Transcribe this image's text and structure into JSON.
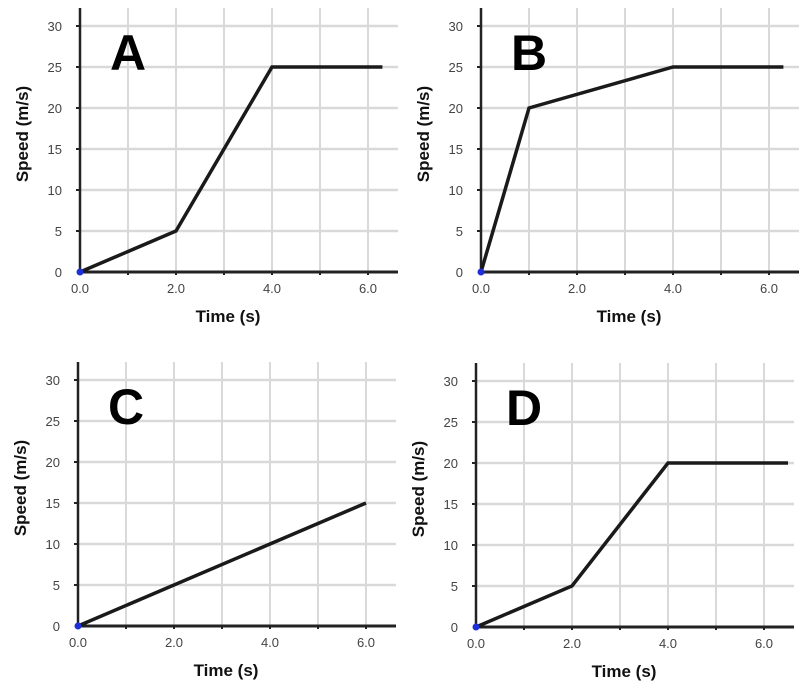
{
  "figure": {
    "description": "Four speed vs time graphs labeled A, B, C, D",
    "colors": {
      "line": "#1a1a1a",
      "grid": "#d9d9d9",
      "axis": "#222222",
      "origin_marker": "#1f2fd6",
      "tick_text": "#444444"
    }
  },
  "panels": [
    {
      "letter": "A",
      "xlabel": "Time (s)",
      "ylabel": "Speed (m/s)",
      "xticks": [
        "0.0",
        "2.0",
        "4.0",
        "6.0"
      ],
      "yticks": [
        "0",
        "5",
        "10",
        "15",
        "20",
        "25",
        "30"
      ]
    },
    {
      "letter": "B",
      "xlabel": "Time (s)",
      "ylabel": "Speed (m/s)",
      "xticks": [
        "0.0",
        "2.0",
        "4.0",
        "6.0"
      ],
      "yticks": [
        "0",
        "5",
        "10",
        "15",
        "20",
        "25",
        "30"
      ]
    },
    {
      "letter": "C",
      "xlabel": "Time (s)",
      "ylabel": "Speed (m/s)",
      "xticks": [
        "0.0",
        "2.0",
        "4.0",
        "6.0"
      ],
      "yticks": [
        "0",
        "5",
        "10",
        "15",
        "20",
        "25",
        "30"
      ]
    },
    {
      "letter": "D",
      "xlabel": "Time (s)",
      "ylabel": "Speed (m/s)",
      "xticks": [
        "0.0",
        "2.0",
        "4.0",
        "6.0"
      ],
      "yticks": [
        "0",
        "5",
        "10",
        "15",
        "20",
        "25",
        "30"
      ]
    }
  ],
  "chart_data": [
    {
      "type": "line",
      "title": "A",
      "xlabel": "Time (s)",
      "ylabel": "Speed (m/s)",
      "xlim": [
        0,
        6.6
      ],
      "ylim": [
        0,
        31
      ],
      "grid": true,
      "xticks": [
        0,
        2,
        4,
        6
      ],
      "yticks": [
        0,
        5,
        10,
        15,
        20,
        25,
        30
      ],
      "x": [
        0,
        2,
        4,
        6.3
      ],
      "y": [
        0,
        5,
        25,
        25
      ]
    },
    {
      "type": "line",
      "title": "B",
      "xlabel": "Time (s)",
      "ylabel": "Speed (m/s)",
      "xlim": [
        0,
        6.6
      ],
      "ylim": [
        0,
        31
      ],
      "grid": true,
      "xticks": [
        0,
        2,
        4,
        6
      ],
      "yticks": [
        0,
        5,
        10,
        15,
        20,
        25,
        30
      ],
      "x": [
        0,
        1,
        4,
        6.3
      ],
      "y": [
        0,
        20,
        25,
        25
      ]
    },
    {
      "type": "line",
      "title": "C",
      "xlabel": "Time (s)",
      "ylabel": "Speed (m/s)",
      "xlim": [
        0,
        6.6
      ],
      "ylim": [
        0,
        31
      ],
      "grid": true,
      "xticks": [
        0,
        2,
        4,
        6
      ],
      "yticks": [
        0,
        5,
        10,
        15,
        20,
        25,
        30
      ],
      "x": [
        0,
        6
      ],
      "y": [
        0,
        15
      ]
    },
    {
      "type": "line",
      "title": "D",
      "xlabel": "Time (s)",
      "ylabel": "Speed (m/s)",
      "xlim": [
        0,
        6.6
      ],
      "ylim": [
        0,
        31
      ],
      "grid": true,
      "xticks": [
        0,
        2,
        4,
        6
      ],
      "yticks": [
        0,
        5,
        10,
        15,
        20,
        25,
        30
      ],
      "x": [
        0,
        2,
        4,
        6.5
      ],
      "y": [
        0,
        5,
        20,
        20
      ]
    }
  ]
}
